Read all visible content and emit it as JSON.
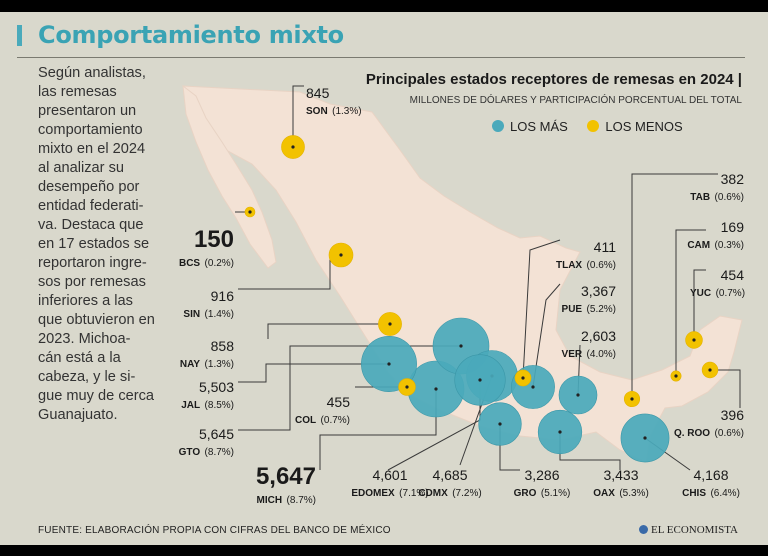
{
  "header": {
    "title": "Comportamiento mixto"
  },
  "intro": {
    "lines": [
      "Según analistas,",
      "las remesas",
      "presentaron un",
      "comportamiento",
      "mixto en el 2024",
      "al analizar su",
      "desempeño por",
      "entidad federati-",
      "va. Destaca que",
      "en 17 estados se",
      "reportaron ingre-",
      "sos por remesas",
      "inferiores a las",
      "que obtuvieron en",
      "2023. Michoa-",
      "cán está a la",
      "cabeza, y le si-",
      "gue muy de cerca",
      "Guanajuato."
    ]
  },
  "chart_data": {
    "type": "map-bubble",
    "title": "Principales estados receptores de remesas en 2024 |",
    "subtitle": "MILLONES DE DÓLARES Y PARTICIPACIÓN PORCENTUAL DEL TOTAL",
    "legend": [
      {
        "label": "LOS MÁS",
        "color": "#4aa9bb"
      },
      {
        "label": "LOS MENOS",
        "color": "#f2c200"
      }
    ],
    "states": [
      {
        "id": "son",
        "state": "SON",
        "value": "845",
        "share": "(1.3%)",
        "group": "menos"
      },
      {
        "id": "bcs",
        "state": "BCS",
        "value": "150",
        "share": "(0.2%)",
        "group": "menos"
      },
      {
        "id": "sin",
        "state": "SIN",
        "value": "916",
        "share": "(1.4%)",
        "group": "menos"
      },
      {
        "id": "nay",
        "state": "NAY",
        "value": "858",
        "share": "(1.3%)",
        "group": "menos"
      },
      {
        "id": "jal",
        "state": "JAL",
        "value": "5,503",
        "share": "(8.5%)",
        "group": "mas"
      },
      {
        "id": "gto",
        "state": "GTO",
        "value": "5,645",
        "share": "(8.7%)",
        "group": "mas"
      },
      {
        "id": "mich",
        "state": "MICH",
        "value": "5,647",
        "share": "(8.7%)",
        "group": "mas"
      },
      {
        "id": "col",
        "state": "COL",
        "value": "455",
        "share": "(0.7%)",
        "group": "menos"
      },
      {
        "id": "edomex",
        "state": "EDOMEX",
        "value": "4,601",
        "share": "(7.1%)",
        "group": "mas"
      },
      {
        "id": "cdmx",
        "state": "CDMX",
        "value": "4,685",
        "share": "(7.2%)",
        "group": "mas"
      },
      {
        "id": "gro",
        "state": "GRO",
        "value": "3,286",
        "share": "(5.1%)",
        "group": "mas"
      },
      {
        "id": "oax",
        "state": "OAX",
        "value": "3,433",
        "share": "(5.3%)",
        "group": "mas"
      },
      {
        "id": "chis",
        "state": "CHIS",
        "value": "4,168",
        "share": "(6.4%)",
        "group": "mas"
      },
      {
        "id": "qroo",
        "state": "Q. ROO",
        "value": "396",
        "share": "(0.6%)",
        "group": "menos"
      },
      {
        "id": "yuc",
        "state": "YUC",
        "value": "454",
        "share": "(0.7%)",
        "group": "menos"
      },
      {
        "id": "cam",
        "state": "CAM",
        "value": "169",
        "share": "(0.3%)",
        "group": "menos"
      },
      {
        "id": "tab",
        "state": "TAB",
        "value": "382",
        "share": "(0.6%)",
        "group": "menos"
      },
      {
        "id": "ver",
        "state": "VER",
        "value": "2,603",
        "share": "(4.0%)",
        "group": "mas"
      },
      {
        "id": "pue",
        "state": "PUE",
        "value": "3,367",
        "share": "(5.2%)",
        "group": "mas"
      },
      {
        "id": "tlax",
        "state": "TLAX",
        "value": "411",
        "share": "(0.6%)",
        "group": "menos"
      }
    ]
  },
  "footer": {
    "source": "FUENTE: ELABORACIÓN PROPIA CON CIFRAS DEL BANCO DE MÉXICO",
    "brand": "EL ECONOMISTA"
  }
}
